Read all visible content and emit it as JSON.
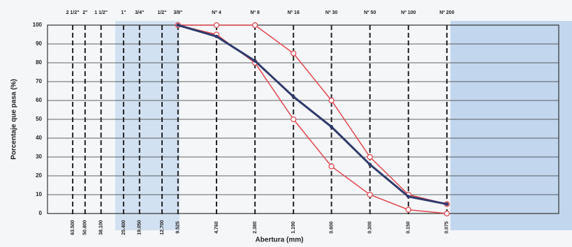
{
  "chart_data": {
    "type": "line",
    "x_label": "Abertura (mm)",
    "y_label": "Porcentaje que pasa (%)",
    "log_x": true,
    "xlim": [
      100,
      0.01
    ],
    "ylim": [
      0,
      100
    ],
    "yticks": [
      0,
      10,
      20,
      30,
      40,
      50,
      60,
      70,
      80,
      90,
      100
    ],
    "xticks": [
      {
        "value": 63.5,
        "label": "63.500"
      },
      {
        "value": 50.8,
        "label": "50.800"
      },
      {
        "value": 38.1,
        "label": "38.100"
      },
      {
        "value": 25.4,
        "label": "25.400"
      },
      {
        "value": 19.05,
        "label": "19.050"
      },
      {
        "value": 12.7,
        "label": "12.700"
      },
      {
        "value": 9.525,
        "label": "9.525"
      },
      {
        "value": 4.76,
        "label": "4.760"
      },
      {
        "value": 2.38,
        "label": "2.380"
      },
      {
        "value": 1.19,
        "label": "1.190"
      },
      {
        "value": 0.6,
        "label": "0.600"
      },
      {
        "value": 0.3,
        "label": "0.300"
      },
      {
        "value": 0.15,
        "label": "0.150"
      },
      {
        "value": 0.075,
        "label": "0.075"
      }
    ],
    "sieve_names": [
      "2 1/2\"",
      "2\"",
      "1 1/2\"",
      "1\"",
      "3/4\"",
      "1/2\"",
      "3/8\"",
      "Nº 4",
      "Nº 8",
      "Nº 16",
      "Nº 30",
      "Nº 50",
      "Nº 100",
      "Nº 200"
    ],
    "grid": true,
    "x": [
      9.525,
      4.76,
      2.38,
      1.19,
      0.6,
      0.3,
      0.15,
      0.075
    ],
    "series": [
      {
        "color": "#e2474d",
        "marker": "circle",
        "values": [
          100,
          100,
          100,
          85,
          60,
          30,
          10,
          5
        ]
      },
      {
        "color": "#e2474d",
        "marker": "circle",
        "values": [
          100,
          95,
          80,
          50,
          25,
          10,
          2,
          0
        ]
      },
      {
        "color": "#2f3a6c",
        "marker": "dot",
        "values": [
          100,
          94,
          81,
          62,
          46,
          26,
          9,
          5
        ]
      }
    ]
  }
}
